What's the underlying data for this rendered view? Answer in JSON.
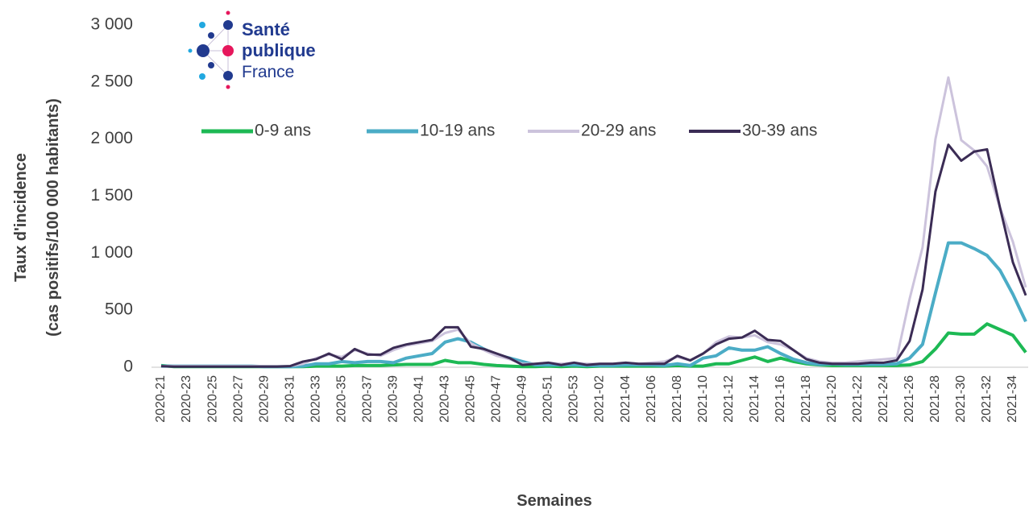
{
  "logo": [
    "Santé",
    "publique",
    "France"
  ],
  "chart_data": {
    "type": "line",
    "x_label": "Semaines",
    "y_label": [
      "Taux d'incidence",
      "(cas positifs/100 000 habitants)"
    ],
    "categories": [
      "2020-21",
      null,
      "2020-23",
      null,
      "2020-25",
      null,
      "2020-27",
      null,
      "2020-29",
      null,
      "2020-31",
      null,
      "2020-33",
      null,
      "2020-35",
      null,
      "2020-37",
      null,
      "2020-39",
      null,
      "2020-41",
      null,
      "2020-43",
      null,
      "2020-45",
      null,
      "2020-47",
      null,
      "2020-49",
      null,
      "2020-51",
      null,
      "2020-53",
      null,
      "2021-02",
      null,
      "2021-04",
      null,
      "2021-06",
      null,
      "2021-08",
      null,
      "2021-10",
      null,
      "2021-12",
      null,
      "2021-14",
      null,
      "2021-16",
      null,
      "2021-18",
      null,
      "2021-20",
      null,
      "2021-22",
      null,
      "2021-24",
      null,
      "2021-26",
      null,
      "2021-28",
      null,
      "2021-30",
      null,
      "2021-32",
      null,
      "2021-34",
      null
    ],
    "ylim": [
      0,
      3000
    ],
    "yticks": [
      0,
      500,
      {
        "value": 1000,
        "label": "1 000"
      },
      {
        "value": 1500,
        "label": "1 500"
      },
      {
        "value": 2000,
        "label": "2 000"
      },
      {
        "value": 2500,
        "label": "2 500"
      },
      {
        "value": 3000,
        "label": "3 000"
      }
    ],
    "legend": "top",
    "series": [
      {
        "name": "0-9 ans",
        "color": "#1db954",
        "width": 4,
        "values": [
          15,
          5,
          5,
          5,
          5,
          5,
          5,
          5,
          5,
          5,
          5,
          5,
          10,
          10,
          10,
          15,
          15,
          15,
          20,
          25,
          25,
          25,
          60,
          40,
          40,
          25,
          15,
          10,
          5,
          5,
          10,
          5,
          10,
          5,
          10,
          10,
          10,
          10,
          10,
          10,
          15,
          10,
          10,
          30,
          30,
          60,
          90,
          50,
          80,
          50,
          30,
          20,
          15,
          15,
          15,
          15,
          15,
          15,
          20,
          50,
          160,
          300,
          290,
          290,
          380,
          330,
          280,
          130
        ]
      },
      {
        "name": "10-19 ans",
        "color": "#4bacc6",
        "width": 4,
        "values": [
          10,
          10,
          10,
          10,
          10,
          10,
          10,
          10,
          5,
          5,
          5,
          10,
          30,
          30,
          50,
          40,
          50,
          50,
          40,
          80,
          100,
          120,
          220,
          250,
          220,
          160,
          110,
          80,
          50,
          20,
          20,
          20,
          20,
          15,
          15,
          15,
          20,
          20,
          20,
          15,
          30,
          15,
          80,
          100,
          170,
          150,
          150,
          180,
          120,
          70,
          40,
          25,
          30,
          25,
          25,
          25,
          25,
          30,
          80,
          200,
          650,
          1090,
          1090,
          1040,
          980,
          850,
          640,
          400
        ]
      },
      {
        "name": "20-29 ans",
        "color": "#ccc3dc",
        "width": 3,
        "values": [
          10,
          10,
          10,
          10,
          10,
          10,
          10,
          10,
          10,
          10,
          10,
          30,
          80,
          110,
          90,
          150,
          120,
          100,
          150,
          190,
          210,
          230,
          300,
          330,
          210,
          150,
          100,
          70,
          30,
          30,
          40,
          30,
          40,
          30,
          30,
          30,
          40,
          30,
          40,
          50,
          90,
          60,
          120,
          220,
          270,
          260,
          280,
          220,
          200,
          150,
          80,
          50,
          40,
          40,
          50,
          60,
          70,
          80,
          600,
          1050,
          2000,
          2540,
          1990,
          1900,
          1760,
          1400,
          1100,
          700
        ]
      },
      {
        "name": "30-39 ans",
        "color": "#3b2c55",
        "width": 3,
        "values": [
          10,
          5,
          5,
          5,
          5,
          5,
          5,
          5,
          5,
          5,
          10,
          50,
          70,
          120,
          70,
          160,
          110,
          110,
          170,
          200,
          220,
          240,
          350,
          350,
          180,
          160,
          120,
          80,
          20,
          30,
          40,
          20,
          40,
          20,
          30,
          30,
          40,
          30,
          30,
          30,
          100,
          60,
          120,
          200,
          250,
          260,
          320,
          240,
          230,
          150,
          70,
          40,
          30,
          30,
          30,
          40,
          40,
          60,
          230,
          680,
          1540,
          1950,
          1810,
          1890,
          1910,
          1400,
          920,
          630
        ]
      }
    ]
  }
}
